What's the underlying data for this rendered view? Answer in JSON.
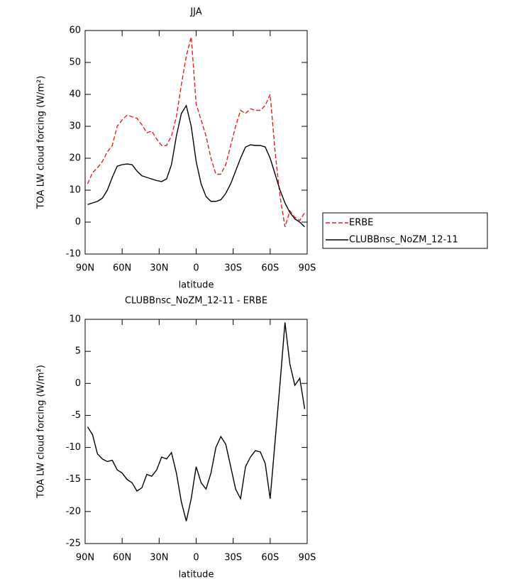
{
  "chart_data": [
    {
      "type": "line",
      "title": "JJA",
      "xlabel": "latitude",
      "ylabel": "TOA LW cloud forcing (W/m²)",
      "x": [
        88,
        84,
        80,
        76,
        72,
        68,
        64,
        60,
        56,
        52,
        48,
        44,
        40,
        36,
        32,
        28,
        24,
        20,
        16,
        12,
        8,
        4,
        0,
        -4,
        -8,
        -12,
        -16,
        -20,
        -24,
        -28,
        -32,
        -36,
        -40,
        -44,
        -48,
        -52,
        -56,
        -60,
        -64,
        -68,
        -72,
        -76,
        -80,
        -84,
        -88
      ],
      "series": [
        {
          "name": "ERBE",
          "color": "#e8201c",
          "linestyle": "dashed",
          "values": [
            12,
            15.5,
            17,
            19,
            22,
            24,
            30,
            32,
            33.5,
            33,
            32.5,
            30.5,
            28,
            28.5,
            26,
            24,
            24,
            27,
            33,
            43,
            52,
            58,
            37,
            32,
            27,
            20,
            15,
            15,
            18,
            24,
            30,
            35,
            34,
            35.5,
            35,
            35,
            36.5,
            40,
            22,
            8,
            -1.5,
            3.5,
            1.5,
            0.5,
            3
          ]
        },
        {
          "name": "CLUBBnsc_NoZM_12-11",
          "color": "#000000",
          "linestyle": "solid",
          "values": [
            5.5,
            6,
            6.5,
            7.5,
            10,
            14,
            17.5,
            18,
            18.2,
            18,
            16,
            14.5,
            14,
            13.5,
            13,
            12.7,
            13.5,
            18,
            27,
            34,
            36.5,
            30,
            19,
            12,
            8,
            6.5,
            6.5,
            7,
            9,
            12,
            16,
            20,
            23.5,
            24.2,
            24,
            24,
            23.5,
            20,
            15,
            10,
            6,
            3,
            1,
            0,
            -1.5
          ]
        }
      ],
      "xlim": [
        90,
        -90
      ],
      "xticks": [
        {
          "value": 90,
          "label": "90N"
        },
        {
          "value": 60,
          "label": "60N"
        },
        {
          "value": 30,
          "label": "30N"
        },
        0,
        {
          "value": -30,
          "label": "30S"
        },
        {
          "value": -60,
          "label": "60S"
        },
        {
          "value": -90,
          "label": "90S"
        }
      ],
      "ylim": [
        -10,
        60
      ],
      "yticks": [
        -10,
        0,
        10,
        20,
        30,
        40,
        50,
        60
      ],
      "legend": "right"
    },
    {
      "type": "line",
      "title": "CLUBBnsc_NoZM_12-11 - ERBE",
      "xlabel": "latitude",
      "ylabel": "TOA LW cloud forcing (W/m²)",
      "x": [
        88,
        84,
        80,
        76,
        72,
        68,
        64,
        60,
        56,
        52,
        48,
        44,
        40,
        36,
        32,
        28,
        24,
        20,
        16,
        12,
        8,
        4,
        0,
        -4,
        -8,
        -12,
        -16,
        -20,
        -24,
        -28,
        -32,
        -36,
        -40,
        -44,
        -48,
        -52,
        -56,
        -60,
        -64,
        -68,
        -72,
        -76,
        -80,
        -84,
        -88
      ],
      "series": [
        {
          "color": "#000000",
          "linestyle": "solid",
          "values": [
            -6.8,
            -8,
            -11,
            -11.8,
            -12.2,
            -12,
            -13.5,
            -14,
            -15,
            -15.5,
            -16.8,
            -16.3,
            -14.2,
            -14.5,
            -13.5,
            -11.5,
            -11.8,
            -10.8,
            -14,
            -18.5,
            -21.5,
            -18,
            -13,
            -15.5,
            -16.5,
            -14,
            -10,
            -8.3,
            -9.5,
            -13,
            -16.5,
            -18,
            -13,
            -11.5,
            -10.5,
            -10.7,
            -12.5,
            -18,
            -9,
            0,
            9.5,
            3,
            -0.3,
            0.8,
            -4
          ]
        }
      ],
      "xlim": [
        90,
        -90
      ],
      "xticks": [
        {
          "value": 90,
          "label": "90N"
        },
        {
          "value": 60,
          "label": "60N"
        },
        {
          "value": 30,
          "label": "30N"
        },
        0,
        {
          "value": -30,
          "label": "30S"
        },
        {
          "value": -60,
          "label": "60S"
        },
        {
          "value": -90,
          "label": "90S"
        }
      ],
      "ylim": [
        -25,
        10
      ],
      "yticks": [
        -25,
        -20,
        -15,
        -10,
        -5,
        0,
        5,
        10
      ]
    }
  ]
}
